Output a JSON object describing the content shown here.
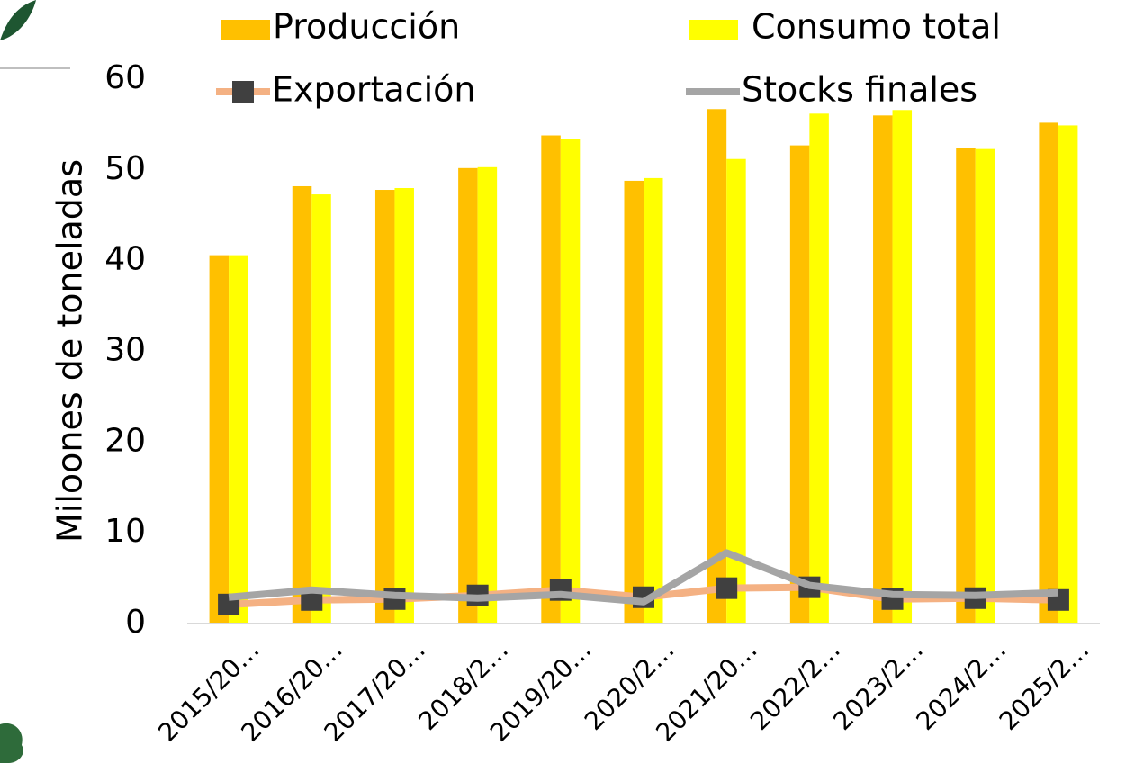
{
  "chart_data": {
    "type": "bar",
    "y_label": "Miloones de toneladas",
    "categories": [
      "2015/20…",
      "2016/20…",
      "2017/20…",
      "2018/2…",
      "2019/20…",
      "2020/2…",
      "2021/20…",
      "2022/2…",
      "2023/2…",
      "2024/2…",
      "2025/2…"
    ],
    "series": [
      {
        "name": "Producción",
        "type": "bar",
        "color": "#ffc000",
        "values": [
          40.6,
          48.2,
          47.8,
          50.2,
          53.8,
          48.8,
          56.7,
          52.7,
          56.0,
          52.4,
          55.2
        ]
      },
      {
        "name": "Consumo total",
        "type": "bar",
        "color": "#ffff00",
        "values": [
          40.6,
          47.3,
          48.0,
          50.3,
          53.4,
          49.1,
          51.2,
          56.2,
          56.6,
          52.3,
          54.9
        ]
      },
      {
        "name": "Exportación",
        "type": "line",
        "color": "#f4b183",
        "marker_color": "#404040",
        "values": [
          2.1,
          2.6,
          2.7,
          3.1,
          3.7,
          2.9,
          3.9,
          4.0,
          2.7,
          2.8,
          2.6
        ]
      },
      {
        "name": "Stocks finales",
        "type": "line",
        "color": "#a5a5a5",
        "values": [
          2.9,
          3.7,
          3.1,
          2.8,
          3.2,
          2.4,
          7.8,
          4.2,
          3.2,
          3.1,
          3.4
        ]
      }
    ],
    "ylim": [
      0,
      60
    ],
    "yticks": [
      0,
      10,
      20,
      30,
      40,
      50,
      60
    ],
    "grid": false
  }
}
